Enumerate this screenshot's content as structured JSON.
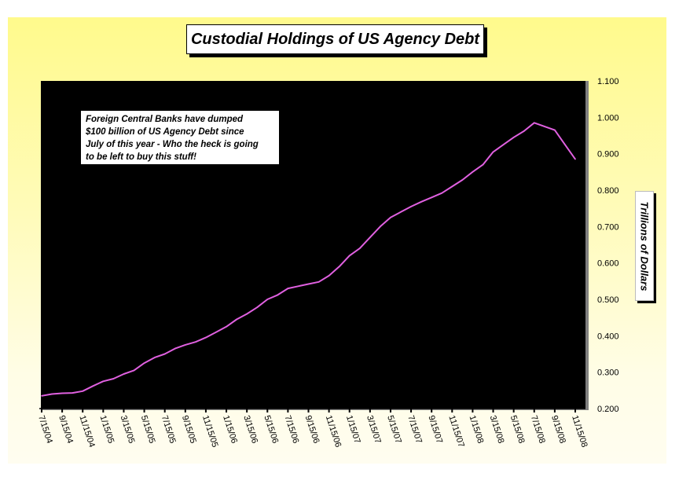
{
  "chart_data": {
    "type": "line",
    "title": "Custodial Holdings of US Agency Debt",
    "xlabel": "",
    "ylabel": "Trillions of Dollars",
    "ylim": [
      0.2,
      1.1
    ],
    "y_ticks": [
      "0.200",
      "0.300",
      "0.400",
      "0.500",
      "0.600",
      "0.700",
      "0.800",
      "0.900",
      "1.000",
      "1.100"
    ],
    "y_tick_values": [
      0.2,
      0.3,
      0.4,
      0.5,
      0.6,
      0.7,
      0.8,
      0.9,
      1.0,
      1.1
    ],
    "x_ticks": [
      "7/15/04",
      "9/15/04",
      "11/15/04",
      "1/15/05",
      "3/15/05",
      "5/15/05",
      "7/15/05",
      "9/15/05",
      "11/15/05",
      "1/15/06",
      "3/15/06",
      "5/15/06",
      "7/15/06",
      "9/15/06",
      "11/15/06",
      "1/15/07",
      "3/15/07",
      "5/15/07",
      "7/15/07",
      "9/15/07",
      "11/15/07",
      "1/15/08",
      "3/15/08",
      "5/15/08",
      "7/15/08",
      "9/15/08",
      "11/15/08"
    ],
    "grid": false,
    "legend": "none",
    "annotation": "Foreign Central Banks have dumped $100 billion of US Agency Debt since July of this year - Who the heck is going to be left to buy this stuff!",
    "annotation_lines": [
      "Foreign Central Banks have dumped",
      "$100 billion of US Agency Debt since",
      "July of this year - Who the heck is going",
      "to be left to buy this stuff!"
    ],
    "series": [
      {
        "name": "Custodial Holdings of US Agency Debt",
        "color": "#e060e0",
        "x_index": [
          0,
          0.5,
          1,
          1.5,
          2,
          2.5,
          3,
          3.5,
          4,
          4.5,
          5,
          5.5,
          6,
          6.5,
          7,
          7.5,
          8,
          8.5,
          9,
          9.5,
          10,
          10.5,
          11,
          11.5,
          12,
          12.5,
          13,
          13.5,
          14,
          14.5,
          15,
          15.5,
          16,
          16.5,
          17,
          17.5,
          18,
          18.5,
          19,
          19.5,
          20,
          20.5,
          21,
          21.5,
          22,
          22.5,
          23,
          23.5,
          24,
          24.5,
          25,
          25.5,
          26
        ],
        "values": [
          0.235,
          0.24,
          0.242,
          0.243,
          0.248,
          0.262,
          0.275,
          0.282,
          0.295,
          0.305,
          0.325,
          0.34,
          0.35,
          0.365,
          0.375,
          0.383,
          0.395,
          0.41,
          0.425,
          0.445,
          0.46,
          0.478,
          0.5,
          0.512,
          0.53,
          0.536,
          0.542,
          0.548,
          0.565,
          0.59,
          0.62,
          0.64,
          0.67,
          0.7,
          0.725,
          0.74,
          0.755,
          0.768,
          0.78,
          0.792,
          0.81,
          0.828,
          0.85,
          0.87,
          0.905,
          0.925,
          0.945,
          0.962,
          0.985,
          0.975,
          0.965,
          0.925,
          0.885
        ]
      }
    ]
  }
}
